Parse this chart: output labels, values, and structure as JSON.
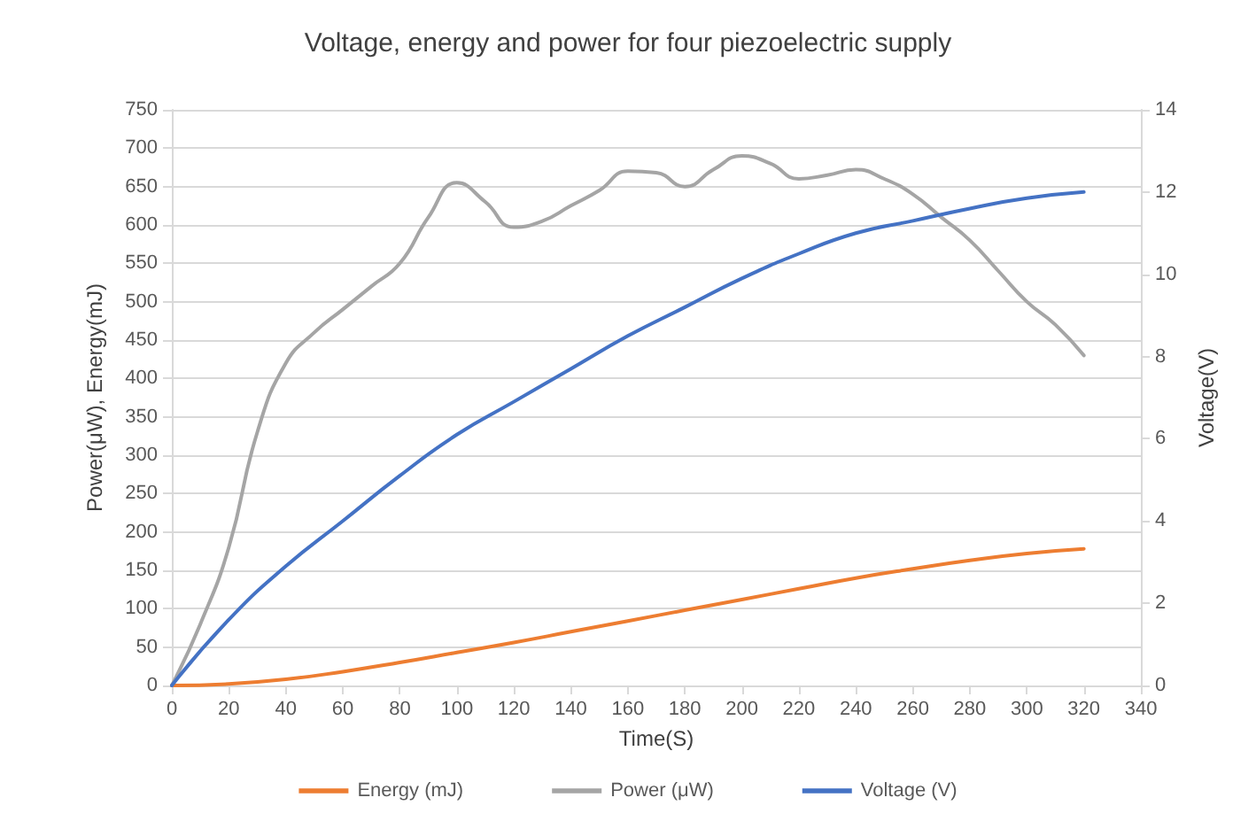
{
  "chart_data": {
    "type": "line",
    "title": "Voltage, energy and power for four piezoelectric supply",
    "xlabel": "Time(S)",
    "ylabel": "Power(μW), Energy(mJ)",
    "y2label": "Voltage(V)",
    "xlim": [
      0,
      340
    ],
    "xticks": [
      0,
      20,
      40,
      60,
      80,
      100,
      120,
      140,
      160,
      180,
      200,
      220,
      240,
      260,
      280,
      300,
      320,
      340
    ],
    "ylim": [
      0,
      750
    ],
    "yticks": [
      0,
      50,
      100,
      150,
      200,
      250,
      300,
      350,
      400,
      450,
      500,
      550,
      600,
      650,
      700,
      750
    ],
    "y2lim": [
      0,
      14
    ],
    "y2ticks": [
      0,
      2,
      4,
      6,
      8,
      10,
      12,
      14
    ],
    "series": [
      {
        "name": "Energy (mJ)",
        "color": "#ed7d31",
        "x": [
          0,
          20,
          40,
          60,
          80,
          100,
          120,
          140,
          160,
          180,
          200,
          220,
          240,
          260,
          280,
          300,
          320
        ],
        "values": [
          0,
          2,
          8,
          18,
          30,
          43,
          56,
          70,
          84,
          98,
          112,
          126,
          140,
          152,
          163,
          172,
          178
        ]
      },
      {
        "name": "Power (μW)",
        "color": "#a5a5a5",
        "x": [
          0,
          10,
          20,
          30,
          40,
          50,
          60,
          70,
          80,
          90,
          100,
          110,
          120,
          130,
          140,
          150,
          160,
          170,
          180,
          190,
          200,
          210,
          220,
          230,
          240,
          250,
          260,
          270,
          280,
          290,
          300,
          310,
          320
        ],
        "values": [
          0,
          80,
          180,
          330,
          420,
          460,
          490,
          520,
          550,
          610,
          655,
          630,
          597,
          605,
          625,
          645,
          670,
          668,
          650,
          672,
          690,
          680,
          660,
          665,
          672,
          660,
          640,
          610,
          580,
          540,
          500,
          470,
          430
        ]
      },
      {
        "name": "Voltage (V)",
        "color": "#4472c4",
        "axis": "y2",
        "x": [
          0,
          20,
          40,
          60,
          80,
          100,
          120,
          140,
          160,
          180,
          200,
          220,
          240,
          260,
          280,
          300,
          320
        ],
        "values": [
          0,
          1.6,
          2.9,
          4.0,
          5.1,
          6.1,
          6.9,
          7.7,
          8.5,
          9.2,
          9.9,
          10.5,
          11.0,
          11.3,
          11.6,
          11.85,
          12.0
        ]
      }
    ],
    "grid": "y",
    "legend": "bottom",
    "marker": "none",
    "line_style": "solid"
  }
}
